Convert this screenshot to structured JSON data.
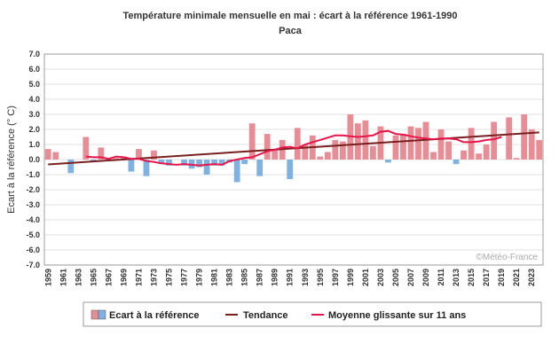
{
  "chart_data": {
    "type": "bar",
    "title": "Température minimale mensuelle en mai : écart à la référence 1961-1990",
    "subtitle": "Paca",
    "ylabel": "Ecart à la référence (° C)",
    "xlabel": "",
    "ylim": [
      -7,
      7
    ],
    "yticks": [
      "7.0",
      "6.0",
      "5.0",
      "4.0",
      "3.0",
      "2.0",
      "1.0",
      "0.0",
      "-1.0",
      "-2.0",
      "-3.0",
      "-4.0",
      "-5.0",
      "-6.0",
      "-7.0"
    ],
    "ytick_values": [
      7,
      6,
      5,
      4,
      3,
      2,
      1,
      0,
      -1,
      -2,
      -3,
      -4,
      -5,
      -6,
      -7
    ],
    "xtick_labels": [
      "1959",
      "1961",
      "1963",
      "1965",
      "1967",
      "1969",
      "1971",
      "1973",
      "1975",
      "1977",
      "1979",
      "1981",
      "1983",
      "1985",
      "1987",
      "1989",
      "1991",
      "1993",
      "1995",
      "1997",
      "1999",
      "2001",
      "2003",
      "2005",
      "2007",
      "2009",
      "2011",
      "2013",
      "2015",
      "2017",
      "2019",
      "2021",
      "2023"
    ],
    "grid": true,
    "legend_position": "bottom",
    "years": [
      1959,
      1960,
      1961,
      1962,
      1963,
      1964,
      1965,
      1966,
      1967,
      1968,
      1969,
      1970,
      1971,
      1972,
      1973,
      1974,
      1975,
      1976,
      1977,
      1978,
      1979,
      1980,
      1981,
      1982,
      1983,
      1984,
      1985,
      1986,
      1987,
      1988,
      1989,
      1990,
      1991,
      1992,
      1993,
      1994,
      1995,
      1996,
      1997,
      1998,
      1999,
      2000,
      2001,
      2002,
      2003,
      2004,
      2005,
      2006,
      2007,
      2008,
      2009,
      2010,
      2011,
      2012,
      2013,
      2014,
      2015,
      2016,
      2017,
      2018,
      2019,
      2020,
      2021,
      2022,
      2023,
      2024
    ],
    "series": [
      {
        "name": "Ecart à la référence",
        "values": [
          0.7,
          0.5,
          0.0,
          -0.9,
          0.0,
          1.5,
          -0.1,
          0.8,
          0.1,
          0.1,
          0.2,
          -0.8,
          0.7,
          -1.1,
          0.6,
          -0.3,
          -0.4,
          0.0,
          -0.4,
          -0.6,
          -0.5,
          -1.0,
          -0.4,
          -0.4,
          -0.2,
          -1.5,
          -0.3,
          2.4,
          -1.1,
          1.7,
          0.7,
          1.3,
          -1.3,
          2.1,
          1.0,
          1.6,
          0.2,
          0.5,
          1.3,
          1.2,
          3.0,
          2.4,
          2.6,
          0.9,
          2.2,
          -0.2,
          1.6,
          1.7,
          2.2,
          2.1,
          2.5,
          0.5,
          2.0,
          1.2,
          -0.3,
          0.6,
          2.1,
          0.4,
          1.0,
          2.5,
          0.0,
          2.8,
          0.1,
          3.0,
          2.0,
          1.3
        ],
        "positive_color": "#e78d96",
        "negative_color": "#7fb2e0"
      },
      {
        "name": "Tendance",
        "type": "line",
        "values_start_end": [
          [
            1959,
            -0.32
          ],
          [
            2024,
            1.8
          ]
        ],
        "color": "#7a1f1f"
      },
      {
        "name": "Moyenne glissante sur 11 ans",
        "type": "line",
        "x": [
          1964,
          1965,
          1966,
          1967,
          1968,
          1969,
          1970,
          1971,
          1972,
          1973,
          1974,
          1975,
          1976,
          1977,
          1978,
          1979,
          1980,
          1981,
          1982,
          1983,
          1984,
          1985,
          1986,
          1987,
          1988,
          1989,
          1990,
          1991,
          1992,
          1993,
          1994,
          1995,
          1996,
          1997,
          1998,
          1999,
          2000,
          2001,
          2002,
          2003,
          2004,
          2005,
          2006,
          2007,
          2008,
          2009,
          2010,
          2011,
          2012,
          2013,
          2014,
          2015,
          2016,
          2017,
          2018,
          2019
        ],
        "values": [
          0.2,
          0.15,
          0.15,
          0.05,
          0.2,
          0.15,
          0.05,
          0.05,
          -0.1,
          -0.15,
          -0.25,
          -0.3,
          -0.35,
          -0.3,
          -0.35,
          -0.4,
          -0.35,
          -0.3,
          -0.35,
          -0.1,
          0.0,
          0.1,
          0.15,
          0.35,
          0.55,
          0.65,
          0.8,
          0.85,
          0.75,
          1.0,
          1.15,
          1.3,
          1.45,
          1.6,
          1.6,
          1.55,
          1.5,
          1.55,
          1.6,
          1.85,
          1.9,
          1.7,
          1.65,
          1.55,
          1.45,
          1.4,
          1.35,
          1.4,
          1.4,
          1.35,
          1.15,
          1.15,
          1.2,
          1.3,
          1.35,
          1.5
        ],
        "color": "#e8154a"
      }
    ],
    "watermark": "©Météo-France"
  },
  "legend": {
    "bars_label": "Ecart à la référence",
    "trend_label": "Tendance",
    "moving_label": "Moyenne glissante sur 11 ans"
  }
}
